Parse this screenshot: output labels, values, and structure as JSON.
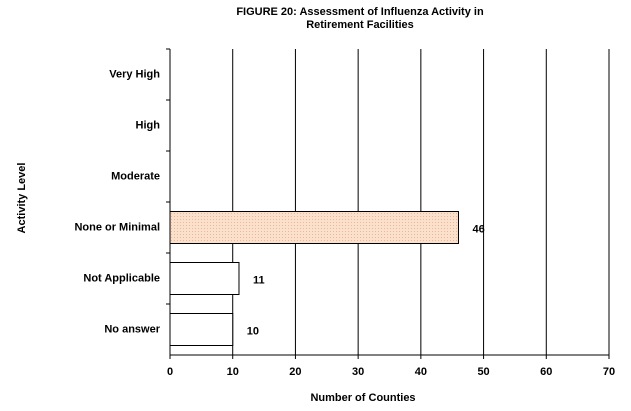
{
  "chart_data": {
    "type": "hbar",
    "title": "FIGURE 20: Assessment of Influenza Activity in Retirement Facilities",
    "xlabel": "Number of Counties",
    "ylabel": "Activity Level",
    "categories": [
      "Very High",
      "High",
      "Moderate",
      "None or Minimal",
      "Not Applicable",
      "No answer"
    ],
    "values": [
      0,
      0,
      0,
      46,
      11,
      10
    ],
    "value_labels": [
      null,
      null,
      null,
      "46",
      "11",
      "10"
    ],
    "colors": [
      "#ffffff",
      "#ffffff",
      "#ffffff",
      "#fbe1cc",
      "#ffffff",
      "#ffffff"
    ],
    "xlim": [
      0,
      70
    ],
    "xticks": [
      0,
      10,
      20,
      30,
      40,
      50,
      60,
      70
    ],
    "grid": true
  }
}
